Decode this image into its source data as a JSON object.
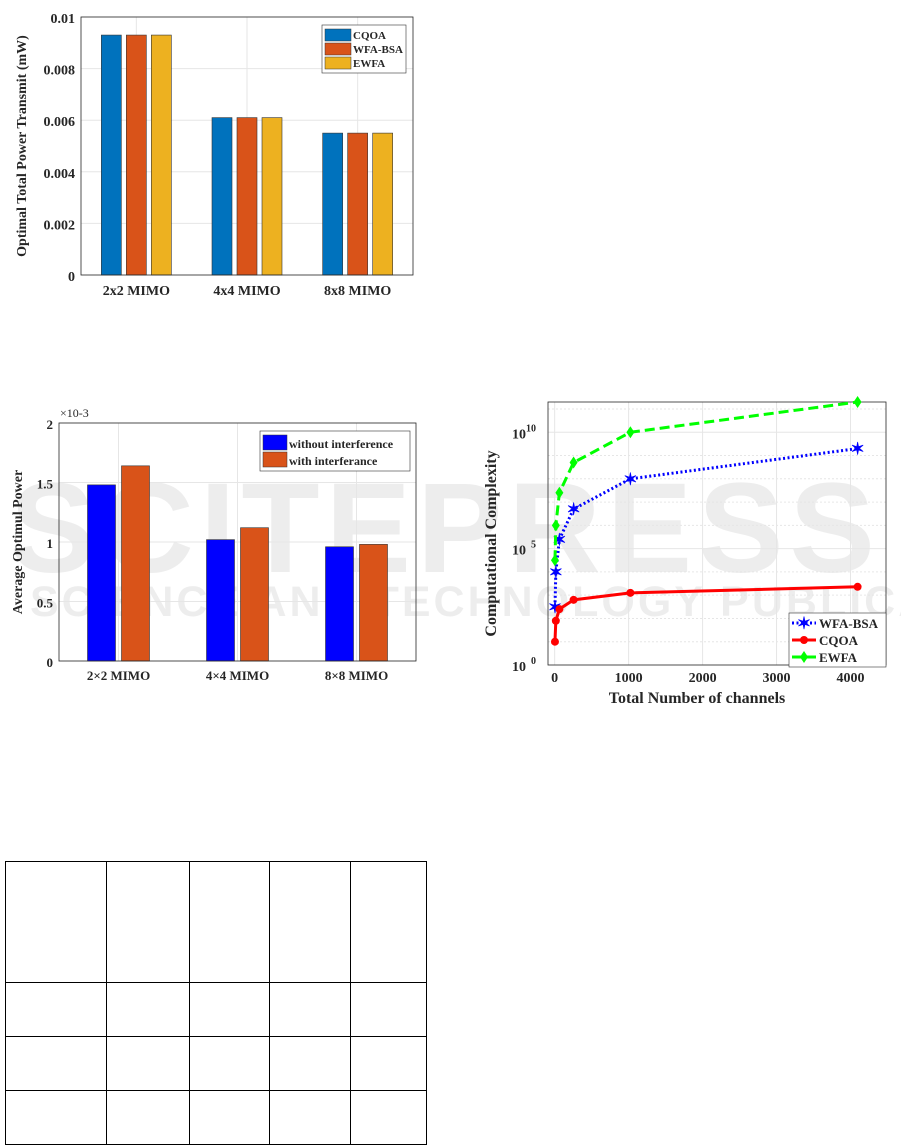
{
  "watermark": {
    "main": "SCITEPRESS",
    "sub": "SCIENCE AND TECHNOLOGY PUBLICATIONS"
  },
  "chart_data": [
    {
      "type": "bar",
      "title": "",
      "xlabel": "",
      "ylabel": "Optimal Total Power Transmit (mW)",
      "categories": [
        "2x2 MIMO",
        "4x4 MIMO",
        "8x8 MIMO"
      ],
      "series": [
        {
          "name": "CQOA",
          "color": "#0072BD",
          "values": [
            0.0093,
            0.0061,
            0.0055
          ]
        },
        {
          "name": "WFA-BSA",
          "color": "#D95319",
          "values": [
            0.0093,
            0.0061,
            0.0055
          ]
        },
        {
          "name": "EWFA",
          "color": "#EDB120",
          "values": [
            0.0093,
            0.0061,
            0.0055
          ]
        }
      ],
      "ylim": [
        0,
        0.01
      ],
      "yticks": [
        "0",
        "0.002",
        "0.004",
        "0.006",
        "0.008",
        "0.01"
      ],
      "grid": true,
      "legend": "top-right"
    },
    {
      "type": "bar",
      "title": "",
      "xlabel": "",
      "ylabel": "Average Optimul Power",
      "yscale_label": "×10-3",
      "categories": [
        "2×2 MIMO",
        "4×4 MIMO",
        "8×8 MIMO"
      ],
      "series": [
        {
          "name": "without interference",
          "color": "#0000FF",
          "values": [
            1.48,
            1.02,
            0.96
          ]
        },
        {
          "name": "with interferance",
          "color": "#D95319",
          "values": [
            1.64,
            1.12,
            0.98
          ]
        }
      ],
      "ylim": [
        0,
        2
      ],
      "yticks": [
        "0",
        "0.5",
        "1",
        "1.5",
        "2"
      ],
      "grid": true,
      "legend": "top-right"
    },
    {
      "type": "line",
      "title": "",
      "xlabel": "Total Number of channels",
      "ylabel": "Computational Complexity",
      "yscale": "log",
      "x": [
        4,
        16,
        64,
        256,
        1024,
        4096
      ],
      "series": [
        {
          "name": "WFA-BSA",
          "color": "#0000FF",
          "style": "dotted",
          "marker": "star",
          "log10_values": [
            2.5,
            4.0,
            5.4,
            6.7,
            8.0,
            9.3
          ]
        },
        {
          "name": "CQOA",
          "color": "#FF0000",
          "style": "solid",
          "marker": "circle",
          "log10_values": [
            1.0,
            1.9,
            2.4,
            2.8,
            3.1,
            3.36
          ]
        },
        {
          "name": "EWFA",
          "color": "#00FF00",
          "style": "dashed",
          "marker": "diamond",
          "log10_values": [
            4.5,
            6.0,
            7.4,
            8.7,
            10.0,
            11.3
          ]
        }
      ],
      "xlim": [
        -90,
        4480
      ],
      "xticks": [
        "0",
        "1000",
        "2000",
        "3000",
        "4000"
      ],
      "ylim_log10": [
        0,
        11.3
      ],
      "yticks": [
        {
          "base": "10",
          "exp": "0"
        },
        {
          "base": "10",
          "exp": "5"
        },
        {
          "base": "10",
          "exp": "10"
        }
      ],
      "grid": true,
      "legend": "bottom-right"
    }
  ]
}
